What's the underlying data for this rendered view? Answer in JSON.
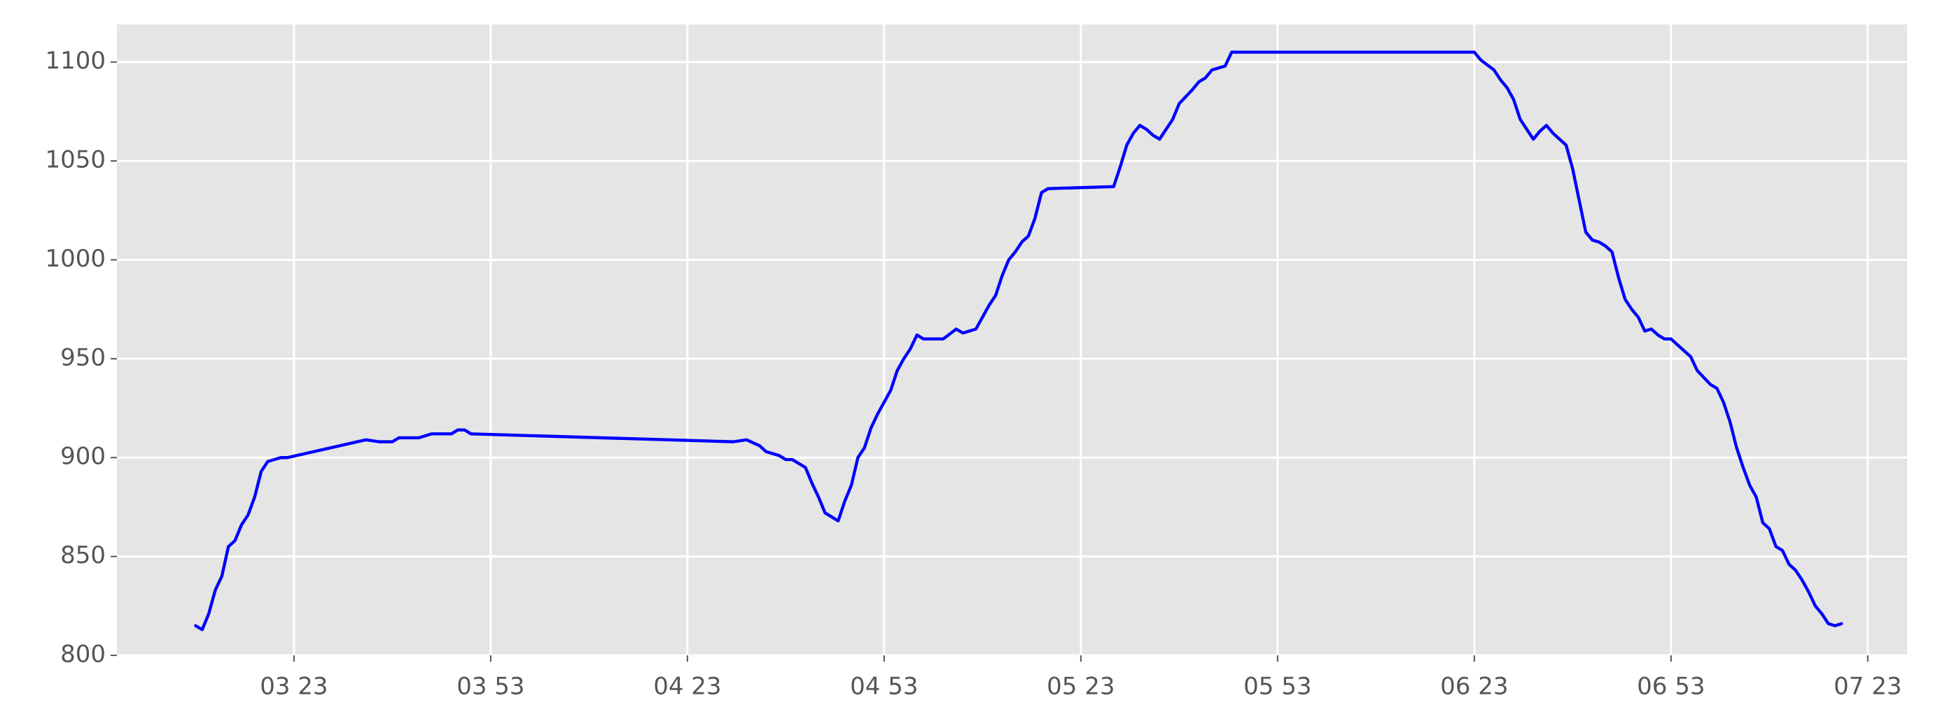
{
  "chart_data": {
    "type": "line",
    "color": "#0000ff",
    "grid": true,
    "x": [
      "03 08",
      "03 09",
      "03 10",
      "03 11",
      "03 12",
      "03 13",
      "03 14",
      "03 15",
      "03 16",
      "03 17",
      "03 18",
      "03 19",
      "03 20",
      "03 21",
      "03 22",
      "03 34",
      "03 36",
      "03 38",
      "03 39",
      "03 42",
      "03 44",
      "03 47",
      "03 48",
      "03 49",
      "03 50",
      "04 30",
      "04 32",
      "04 34",
      "04 35",
      "04 37",
      "04 38",
      "04 39",
      "04 40",
      "04 41",
      "04 42",
      "04 43",
      "04 44",
      "04 45",
      "04 46",
      "04 47",
      "04 48",
      "04 49",
      "04 50",
      "04 51",
      "04 52",
      "04 53",
      "04 54",
      "04 55",
      "04 56",
      "04 57",
      "04 58",
      "04 59",
      "05 02",
      "05 04",
      "05 05",
      "05 07",
      "05 08",
      "05 09",
      "05 10",
      "05 11",
      "05 12",
      "05 13",
      "05 14",
      "05 15",
      "05 16",
      "05 17",
      "05 18",
      "05 28",
      "05 29",
      "05 30",
      "05 31",
      "05 32",
      "05 33",
      "05 34",
      "05 35",
      "05 36",
      "05 37",
      "05 38",
      "05 40",
      "05 41",
      "05 42",
      "05 43",
      "05 45",
      "05 46",
      "06 23",
      "06 24",
      "06 26",
      "06 27",
      "06 28",
      "06 29",
      "06 30",
      "06 31",
      "06 32",
      "06 33",
      "06 34",
      "06 35",
      "06 37",
      "06 38",
      "06 39",
      "06 40",
      "06 41",
      "06 42",
      "06 43",
      "06 44",
      "06 45",
      "06 46",
      "06 47",
      "06 48",
      "06 49",
      "06 50",
      "06 51",
      "06 52",
      "06 53",
      "06 54",
      "06 56",
      "06 57",
      "06 59",
      "07 00",
      "07 01",
      "07 02",
      "07 03",
      "07 04",
      "07 05",
      "07 06",
      "07 07",
      "07 08",
      "07 09",
      "07 10",
      "07 11",
      "07 12",
      "07 13",
      "07 14",
      "07 15",
      "07 16",
      "07 17",
      "07 18",
      "07 19"
    ],
    "values": [
      815,
      813,
      821,
      833,
      840,
      855,
      858,
      866,
      871,
      880,
      893,
      898,
      899,
      900,
      900,
      909,
      908,
      908,
      910,
      910,
      912,
      912,
      914,
      914,
      912,
      908,
      909,
      906,
      903,
      901,
      899,
      899,
      897,
      895,
      887,
      880,
      872,
      870,
      868,
      878,
      886,
      900,
      905,
      915,
      922,
      928,
      934,
      944,
      950,
      955,
      962,
      960,
      960,
      965,
      963,
      965,
      971,
      977,
      982,
      992,
      1000,
      1004,
      1009,
      1012,
      1021,
      1034,
      1036,
      1037,
      1047,
      1058,
      1064,
      1068,
      1066,
      1063,
      1061,
      1066,
      1071,
      1079,
      1086,
      1090,
      1092,
      1096,
      1098,
      1105,
      1105,
      1101,
      1096,
      1091,
      1087,
      1081,
      1071,
      1066,
      1061,
      1065,
      1068,
      1064,
      1058,
      1046,
      1030,
      1014,
      1010,
      1009,
      1007,
      1004,
      991,
      980,
      975,
      971,
      964,
      965,
      962,
      960,
      960,
      957,
      951,
      944,
      937,
      935,
      928,
      918,
      905,
      895,
      886,
      880,
      867,
      864,
      855,
      853,
      846,
      843,
      838,
      832,
      825,
      821,
      816,
      815,
      816
    ],
    "xlim": [
      "02 56",
      "07 29"
    ],
    "xticks": [
      "03 23",
      "03 53",
      "04 23",
      "04 53",
      "05 23",
      "05 53",
      "06 23",
      "06 53",
      "07 23"
    ],
    "ylim": [
      800,
      1119
    ],
    "yticks": [
      800,
      850,
      900,
      950,
      1000,
      1050,
      1100
    ]
  }
}
